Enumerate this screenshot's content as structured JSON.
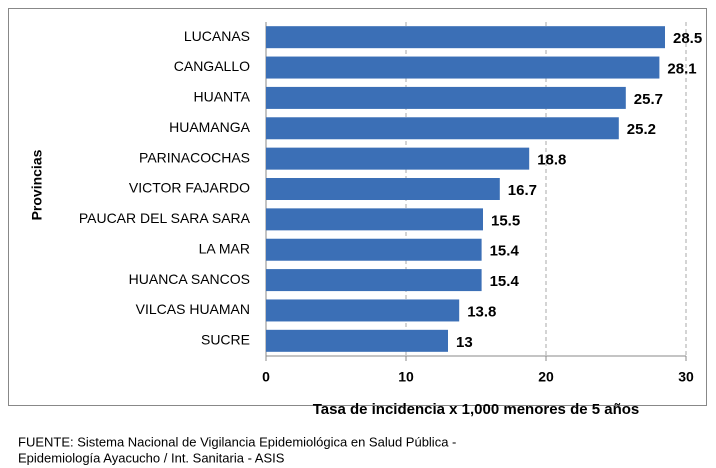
{
  "chart_data": {
    "type": "barh",
    "xlabel": "Tasa de incidencia  x 1,000 menores de 5 años",
    "ylabel": "Provincias",
    "categories": [
      "LUCANAS",
      "CANGALLO",
      "HUANTA",
      "HUAMANGA",
      "PARINACOCHAS",
      "VICTOR FAJARDO",
      "PAUCAR DEL SARA SARA",
      "LA MAR",
      "HUANCA SANCOS",
      "VILCAS HUAMAN",
      "SUCRE"
    ],
    "values": [
      28.5,
      28.1,
      25.7,
      25.2,
      18.8,
      16.7,
      15.5,
      15.4,
      15.4,
      13.8,
      13
    ],
    "color": "#3b6fb6",
    "xlim": [
      0,
      30
    ],
    "xticks": [
      0,
      10,
      20,
      30
    ],
    "grid": true
  },
  "footer": [
    "FUENTE:  Sistema Nacional de Vigilancia Epidemiológica en Salud Pública -",
    "Epidemiología  Ayacucho / Int. Sanitaria - ASIS"
  ]
}
